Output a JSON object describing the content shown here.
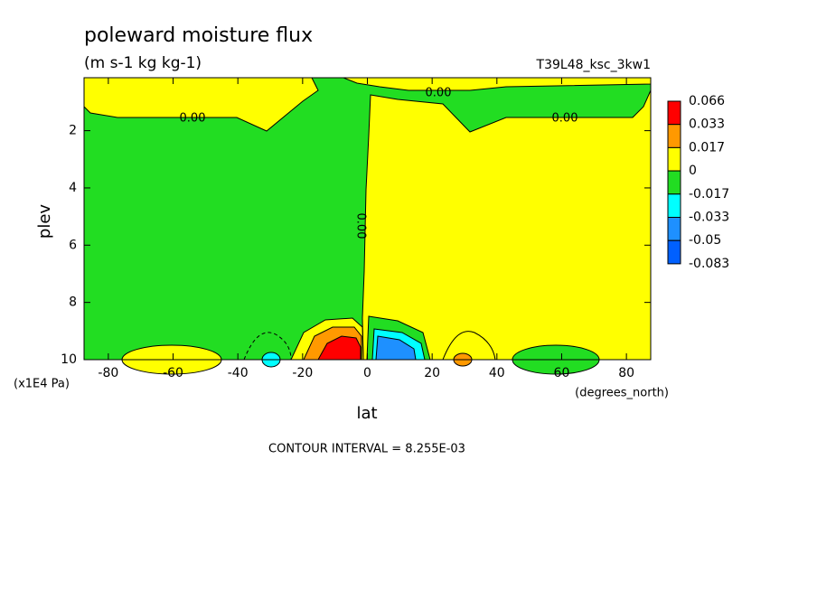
{
  "chart_data": {
    "type": "contour",
    "title": "poleward moisture flux",
    "subtitle": "(m s-1 kg kg-1)",
    "dataset_label": "T39L48_ksc_3kw1",
    "x_label": "lat",
    "x_units": "(degrees_north)",
    "y_label": "plev",
    "y_units": "(x1E4 Pa)",
    "footnote": "CONTOUR INTERVAL = 8.255E-03",
    "xlim": [
      -87.5,
      87.5
    ],
    "xticks": [
      -80,
      -60,
      -40,
      -20,
      0,
      20,
      40,
      60,
      80
    ],
    "ylim": [
      0.15,
      10
    ],
    "y_reversed": true,
    "yticks": [
      2,
      4,
      6,
      8,
      10
    ],
    "levels": [
      0.066,
      0.033,
      0.017,
      0,
      -0.017,
      -0.033,
      -0.05,
      -0.083
    ],
    "colors": [
      "#ff0000",
      "#ff9900",
      "#ffff00",
      "#22dd22",
      "#00ffff",
      "#1e90ff",
      "#0060ff"
    ],
    "contour_labels": [
      "0.00",
      "0.00",
      "0.00",
      "0.00"
    ]
  }
}
